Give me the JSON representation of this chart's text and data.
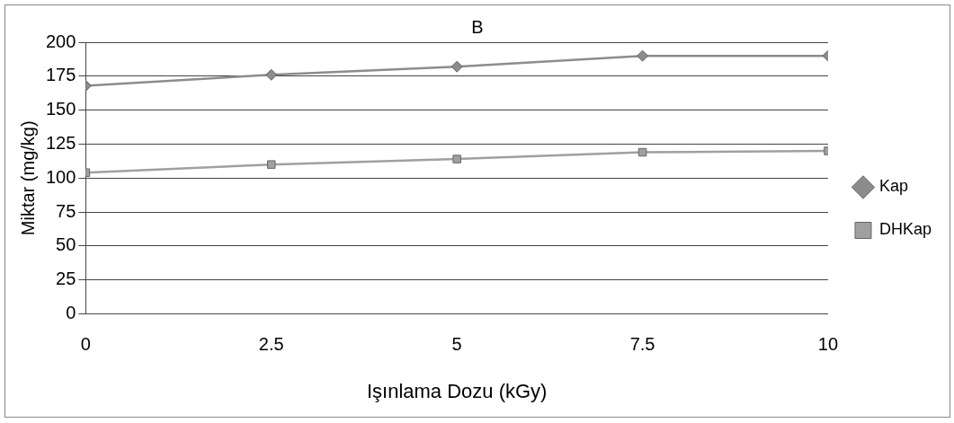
{
  "chart_data": {
    "type": "line",
    "title": "B",
    "xlabel": "Işınlama Dozu (kGy)",
    "ylabel": "Miktar (mg/kg)",
    "x": [
      0,
      2.5,
      5,
      7.5,
      10
    ],
    "series": [
      {
        "name": "Kap",
        "color": "#8c8c8c",
        "marker": "diamond",
        "values": [
          168,
          176,
          182,
          190,
          190
        ]
      },
      {
        "name": "DHKap",
        "color": "#a0a0a0",
        "marker": "square",
        "values": [
          104,
          110,
          114,
          119,
          120
        ]
      }
    ],
    "xlim": [
      0,
      10
    ],
    "xticks": [
      0,
      2.5,
      5,
      7.5,
      10
    ],
    "ylim": [
      0,
      200
    ],
    "yticks": [
      0,
      25,
      50,
      75,
      100,
      125,
      150,
      175,
      200
    ],
    "grid": "y",
    "legend": "right"
  }
}
